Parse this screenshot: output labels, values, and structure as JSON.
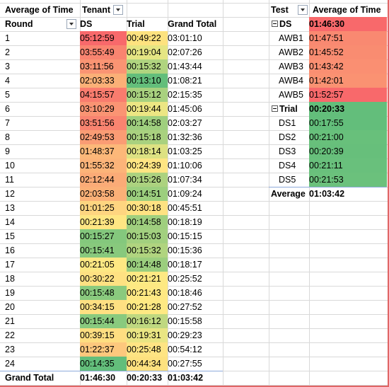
{
  "left_pivot": {
    "value_label": "Average of Time",
    "col_field": "Tenant",
    "row_field": "Round",
    "col_ds": "DS",
    "col_trial": "Trial",
    "col_total": "Grand Total",
    "rows": [
      {
        "round": "1",
        "ds": "05:12:59",
        "trial": "00:49:22",
        "total": "03:01:10",
        "ds_color": "#f8696b",
        "trial_color": "#fde27f"
      },
      {
        "round": "2",
        "ds": "03:55:49",
        "trial": "00:19:04",
        "total": "02:07:26",
        "ds_color": "#f98470",
        "trial_color": "#e5e583"
      },
      {
        "round": "3",
        "ds": "03:11:56",
        "trial": "00:15:32",
        "total": "01:43:44",
        "ds_color": "#fa9473",
        "trial_color": "#b0d47f"
      },
      {
        "round": "4",
        "ds": "02:03:33",
        "trial": "00:13:10",
        "total": "01:08:21",
        "ds_color": "#fbb077",
        "trial_color": "#63be7b"
      },
      {
        "round": "5",
        "ds": "04:15:57",
        "trial": "00:15:12",
        "total": "02:15:35",
        "ds_color": "#f97c6e",
        "trial_color": "#a8d17f"
      },
      {
        "round": "6",
        "ds": "03:10:29",
        "trial": "00:19:44",
        "total": "01:45:06",
        "ds_color": "#fa9473",
        "trial_color": "#ece683"
      },
      {
        "round": "7",
        "ds": "03:51:56",
        "trial": "00:14:58",
        "total": "02:03:27",
        "ds_color": "#f98470",
        "trial_color": "#9fcf7e"
      },
      {
        "round": "8",
        "ds": "02:49:53",
        "trial": "00:15:18",
        "total": "01:32:36",
        "ds_color": "#fa9c74",
        "trial_color": "#a9d17f"
      },
      {
        "round": "9",
        "ds": "01:48:37",
        "trial": "00:18:14",
        "total": "01:03:25",
        "ds_color": "#fcb879",
        "trial_color": "#dde182"
      },
      {
        "round": "10",
        "ds": "01:55:32",
        "trial": "00:24:39",
        "total": "01:10:06",
        "ds_color": "#fcb479",
        "trial_color": "#fee583"
      },
      {
        "round": "11",
        "ds": "02:12:44",
        "trial": "00:15:26",
        "total": "01:07:34",
        "ds_color": "#fbab77",
        "trial_color": "#acd27f"
      },
      {
        "round": "12",
        "ds": "02:03:58",
        "trial": "00:14:51",
        "total": "01:09:24",
        "ds_color": "#fbb077",
        "trial_color": "#9ccf7e"
      },
      {
        "round": "13",
        "ds": "01:01:25",
        "trial": "00:30:18",
        "total": "00:45:51",
        "ds_color": "#fed580",
        "trial_color": "#fee282"
      },
      {
        "round": "14",
        "ds": "00:21:39",
        "trial": "00:14:58",
        "total": "00:18:19",
        "ds_color": "#fee683",
        "trial_color": "#9fcf7e"
      },
      {
        "round": "15",
        "ds": "00:15:27",
        "trial": "00:15:03",
        "total": "00:15:15",
        "ds_color": "#84c87d",
        "trial_color": "#a2d07f"
      },
      {
        "round": "16",
        "ds": "00:15:41",
        "trial": "00:15:32",
        "total": "00:15:36",
        "ds_color": "#88c97d",
        "trial_color": "#b0d47f"
      },
      {
        "round": "17",
        "ds": "00:21:05",
        "trial": "00:14:48",
        "total": "00:18:17",
        "ds_color": "#fde883",
        "trial_color": "#9bce7e"
      },
      {
        "round": "18",
        "ds": "00:30:22",
        "trial": "00:21:21",
        "total": "00:25:52",
        "ds_color": "#fee182",
        "trial_color": "#fde983"
      },
      {
        "round": "19",
        "ds": "00:15:48",
        "trial": "00:21:43",
        "total": "00:18:46",
        "ds_color": "#8aca7e",
        "trial_color": "#fee883"
      },
      {
        "round": "20",
        "ds": "00:34:15",
        "trial": "00:21:28",
        "total": "00:27:52",
        "ds_color": "#fee082",
        "trial_color": "#fee983"
      },
      {
        "round": "21",
        "ds": "00:15:44",
        "trial": "00:16:12",
        "total": "00:15:58",
        "ds_color": "#89ca7e",
        "trial_color": "#bfd880"
      },
      {
        "round": "22",
        "ds": "00:39:15",
        "trial": "00:19:31",
        "total": "00:29:23",
        "ds_color": "#fede81",
        "trial_color": "#e9e583"
      },
      {
        "round": "23",
        "ds": "01:22:37",
        "trial": "00:25:48",
        "total": "00:54:12",
        "ds_color": "#fdc87d",
        "trial_color": "#fee483"
      },
      {
        "round": "24",
        "ds": "00:14:35",
        "trial": "00:44:34",
        "total": "00:27:55",
        "ds_color": "#63be7b",
        "trial_color": "#fde17f"
      }
    ],
    "grand_total": {
      "label": "Grand Total",
      "ds": "01:46:30",
      "trial": "00:20:33",
      "total": "01:03:42"
    }
  },
  "right_pivot": {
    "row_field": "Test",
    "value_label": "Average of Time",
    "groups": [
      {
        "name": "DS",
        "value": "01:46:30",
        "color": "#f8696b",
        "items": [
          {
            "name": "AWB1",
            "value": "01:47:51",
            "color": "#f98971"
          },
          {
            "name": "AWB2",
            "value": "01:45:52",
            "color": "#f98c71"
          },
          {
            "name": "AWB3",
            "value": "01:43:42",
            "color": "#fa8f72"
          },
          {
            "name": "AWB4",
            "value": "01:42:01",
            "color": "#fa9272"
          },
          {
            "name": "AWB5",
            "value": "01:52:57",
            "color": "#f8696b"
          }
        ]
      },
      {
        "name": "Trial",
        "value": "00:20:33",
        "color": "#63be7b",
        "items": [
          {
            "name": "DS1",
            "value": "00:17:55",
            "color": "#63be7b"
          },
          {
            "name": "DS2",
            "value": "00:21:00",
            "color": "#68c07b"
          },
          {
            "name": "DS3",
            "value": "00:20:39",
            "color": "#67bf7b"
          },
          {
            "name": "DS4",
            "value": "00:21:11",
            "color": "#69c07c"
          },
          {
            "name": "DS5",
            "value": "00:21:53",
            "color": "#6bc17c"
          }
        ]
      }
    ],
    "average": {
      "label": "Average",
      "value": "01:03:42"
    }
  }
}
